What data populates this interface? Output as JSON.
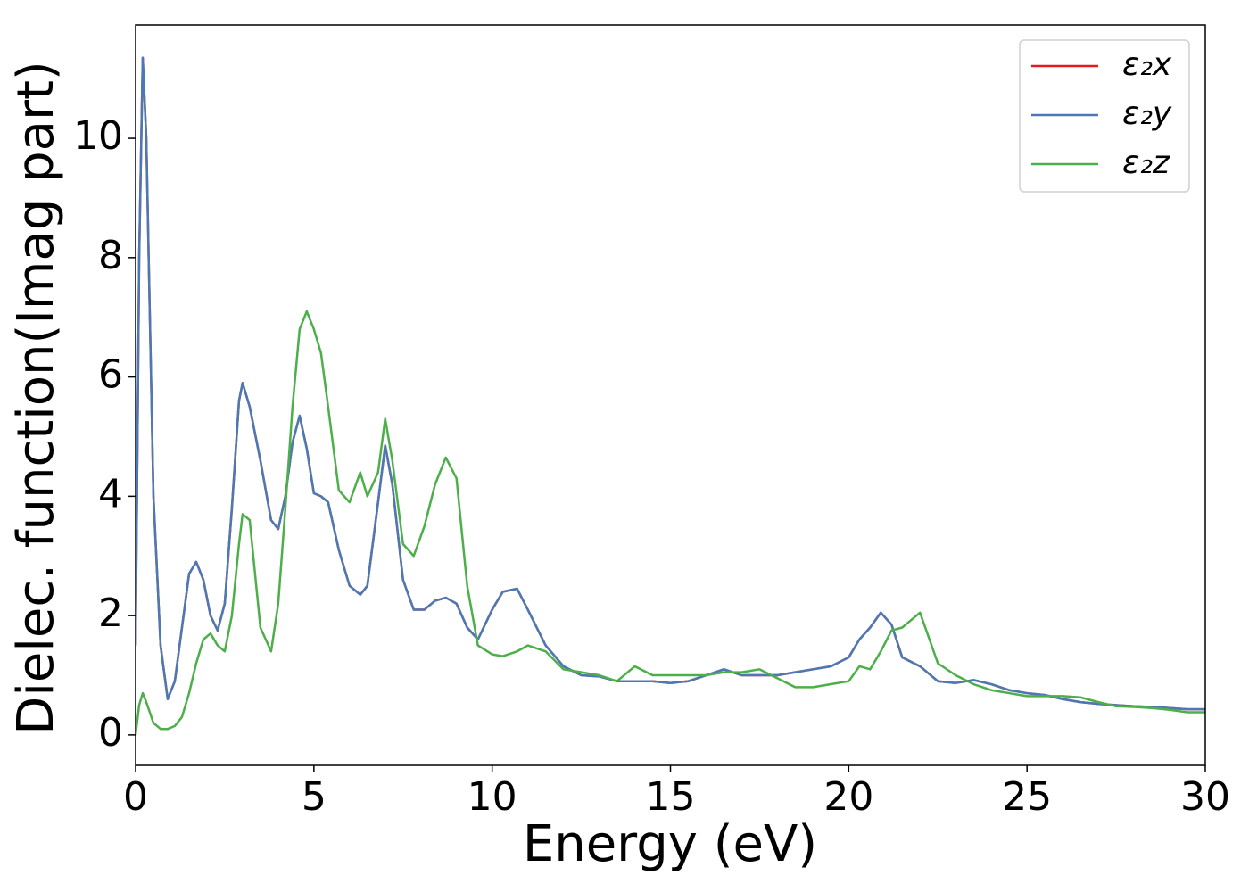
{
  "chart_data": {
    "type": "line",
    "xlabel": "Energy (eV)",
    "ylabel": "Dielec. function(Imag part)",
    "x": [
      0,
      0.1,
      0.2,
      0.3,
      0.5,
      0.7,
      0.9,
      1.1,
      1.3,
      1.5,
      1.7,
      1.9,
      2.1,
      2.3,
      2.5,
      2.7,
      2.9,
      3.0,
      3.2,
      3.5,
      3.8,
      4.0,
      4.2,
      4.4,
      4.6,
      4.8,
      5.0,
      5.2,
      5.4,
      5.7,
      6.0,
      6.3,
      6.5,
      6.8,
      7.0,
      7.2,
      7.5,
      7.8,
      8.1,
      8.4,
      8.7,
      9.0,
      9.3,
      9.6,
      10.0,
      10.3,
      10.7,
      11.0,
      11.5,
      12.0,
      12.5,
      13,
      13.5,
      14,
      14.5,
      15,
      15.5,
      16,
      16.5,
      17,
      17.5,
      18,
      18.5,
      19,
      19.5,
      20,
      20.3,
      20.6,
      20.9,
      21.2,
      21.5,
      22.0,
      22.5,
      23,
      23.5,
      24,
      24.5,
      25,
      25.5,
      26,
      26.5,
      27,
      27.5,
      28,
      28.5,
      29,
      29.5,
      30
    ],
    "series": [
      {
        "name": "ε₂x",
        "color": "#e41a1c",
        "values": [
          1.5,
          8,
          11.35,
          10,
          4,
          1.5,
          0.6,
          0.9,
          1.8,
          2.7,
          2.9,
          2.6,
          2.0,
          1.75,
          2.2,
          3.8,
          5.6,
          5.9,
          5.5,
          4.6,
          3.6,
          3.45,
          4.0,
          4.9,
          5.35,
          4.8,
          4.05,
          4.0,
          3.9,
          3.1,
          2.5,
          2.35,
          2.5,
          3.9,
          4.85,
          4.2,
          2.6,
          2.1,
          2.1,
          2.25,
          2.3,
          2.2,
          1.8,
          1.6,
          2.1,
          2.4,
          2.45,
          2.1,
          1.5,
          1.15,
          1.0,
          0.98,
          0.9,
          0.9,
          0.9,
          0.87,
          0.9,
          1.0,
          1.1,
          1.0,
          1.0,
          1.0,
          1.05,
          1.1,
          1.15,
          1.3,
          1.6,
          1.8,
          2.05,
          1.85,
          1.3,
          1.15,
          0.9,
          0.87,
          0.92,
          0.85,
          0.75,
          0.7,
          0.67,
          0.6,
          0.55,
          0.52,
          0.5,
          0.48,
          0.47,
          0.45,
          0.43,
          0.43
        ]
      },
      {
        "name": "ε₂y",
        "color": "#4a7ab5",
        "values": [
          1.5,
          8,
          11.35,
          10,
          4,
          1.5,
          0.6,
          0.9,
          1.8,
          2.7,
          2.9,
          2.6,
          2.0,
          1.75,
          2.2,
          3.8,
          5.6,
          5.9,
          5.5,
          4.6,
          3.6,
          3.45,
          4.0,
          4.9,
          5.35,
          4.8,
          4.05,
          4.0,
          3.9,
          3.1,
          2.5,
          2.35,
          2.5,
          3.9,
          4.85,
          4.2,
          2.6,
          2.1,
          2.1,
          2.25,
          2.3,
          2.2,
          1.8,
          1.6,
          2.1,
          2.4,
          2.45,
          2.1,
          1.5,
          1.15,
          1.0,
          0.98,
          0.9,
          0.9,
          0.9,
          0.87,
          0.9,
          1.0,
          1.1,
          1.0,
          1.0,
          1.0,
          1.05,
          1.1,
          1.15,
          1.3,
          1.6,
          1.8,
          2.05,
          1.85,
          1.3,
          1.15,
          0.9,
          0.87,
          0.92,
          0.85,
          0.75,
          0.7,
          0.67,
          0.6,
          0.55,
          0.52,
          0.5,
          0.48,
          0.47,
          0.45,
          0.43,
          0.43
        ]
      },
      {
        "name": "ε₂z",
        "color": "#4daf4a",
        "values": [
          0.0,
          0.5,
          0.7,
          0.55,
          0.2,
          0.1,
          0.1,
          0.15,
          0.3,
          0.7,
          1.2,
          1.6,
          1.7,
          1.5,
          1.4,
          2.0,
          3.2,
          3.7,
          3.6,
          1.8,
          1.4,
          2.2,
          3.8,
          5.5,
          6.8,
          7.1,
          6.8,
          6.4,
          5.5,
          4.1,
          3.9,
          4.4,
          4.0,
          4.4,
          5.3,
          4.6,
          3.2,
          3.0,
          3.5,
          4.2,
          4.65,
          4.3,
          2.5,
          1.5,
          1.35,
          1.32,
          1.4,
          1.5,
          1.4,
          1.1,
          1.05,
          1.0,
          0.9,
          1.15,
          1.0,
          1.0,
          1.0,
          1.0,
          1.05,
          1.05,
          1.1,
          0.95,
          0.8,
          0.8,
          0.85,
          0.9,
          1.15,
          1.1,
          1.4,
          1.75,
          1.8,
          2.05,
          1.2,
          1.0,
          0.85,
          0.75,
          0.7,
          0.65,
          0.65,
          0.65,
          0.63,
          0.55,
          0.48,
          0.47,
          0.45,
          0.42,
          0.38,
          0.38
        ]
      }
    ],
    "xlim": [
      0,
      30
    ],
    "xticks": [
      0,
      5,
      10,
      15,
      20,
      25,
      30
    ],
    "ylim": [
      -0.51,
      11.9
    ],
    "yticks": [
      0,
      2,
      4,
      6,
      8,
      10
    ],
    "legend": "upper right",
    "grid": false
  }
}
